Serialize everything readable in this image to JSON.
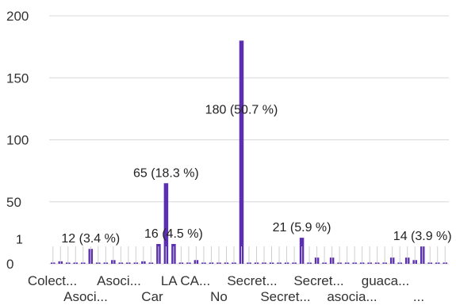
{
  "chart_data": {
    "type": "bar",
    "title": "",
    "xlabel": "",
    "ylabel": "",
    "ylim": [
      0,
      200
    ],
    "y_ticks": [
      "0",
      "50",
      "100",
      "150",
      "200"
    ],
    "grid": "horizontal",
    "bar_color": "#5b2fb0",
    "x_tick_labels_row1": [
      "Colect...",
      "Asoci...",
      "LA CA...",
      "Secret...",
      "Secret...",
      "guaca..."
    ],
    "x_tick_labels_row2": [
      "Asoci...",
      "Car",
      "No",
      "Secret...",
      "asocia...",
      "..."
    ],
    "values": [
      1,
      2,
      1,
      1,
      1,
      12,
      1,
      1,
      3,
      1,
      1,
      1,
      2,
      1,
      16,
      65,
      16,
      1,
      1,
      3,
      1,
      1,
      1,
      1,
      1,
      180,
      1,
      1,
      1,
      1,
      1,
      1,
      1,
      21,
      1,
      5,
      1,
      5,
      1,
      1,
      1,
      1,
      1,
      1,
      1,
      5,
      1,
      5,
      3,
      14,
      1,
      1,
      1
    ],
    "visible_value_labels": [
      {
        "index": 0,
        "text": "1"
      },
      {
        "index": 5,
        "text": "12 (3.4 %)"
      },
      {
        "index": 15,
        "text": "65 (18.3 %)"
      },
      {
        "index": 16,
        "text": "16 (4.5 %)"
      },
      {
        "index": 25,
        "text": "180 (50.7 %)"
      },
      {
        "index": 33,
        "text": "21 (5.9 %)"
      },
      {
        "index": 49,
        "text": "14 (3.9 %)"
      }
    ]
  },
  "colors": {
    "bar": "#5b2fb0",
    "grid": "#d8d8d8",
    "text": "#333333"
  }
}
